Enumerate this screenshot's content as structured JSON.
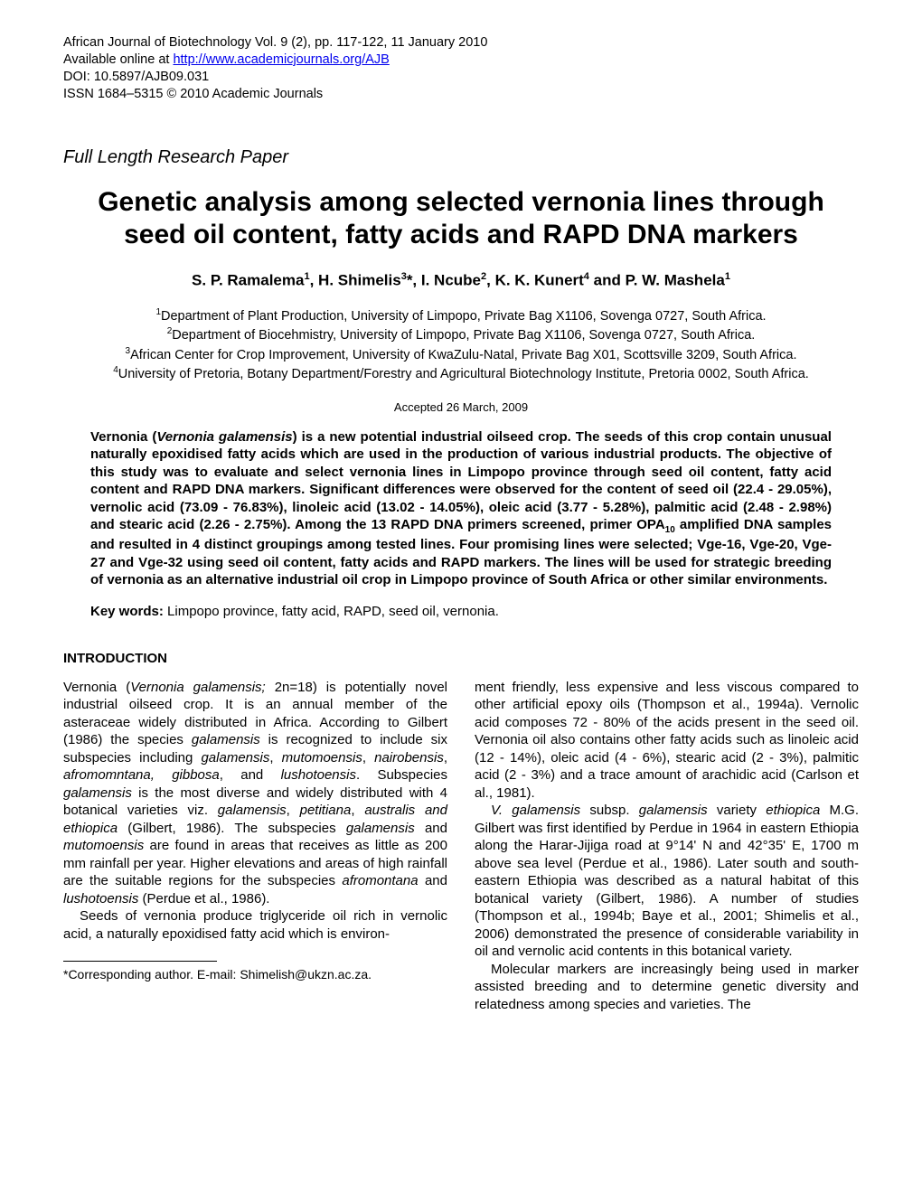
{
  "header": {
    "line1": "African Journal of Biotechnology Vol. 9 (2), pp. 117-122, 11 January 2010",
    "line2_prefix": "Available online at ",
    "line2_link": "http://www.academicjournals.org/AJB",
    "doi": "DOI: 10.5897/AJB09.031",
    "issn": "ISSN 1684–5315 © 2010 Academic Journals"
  },
  "paper_type": "Full Length Research Paper",
  "title": "Genetic analysis among selected vernonia lines through seed oil content, fatty acids and RAPD DNA markers",
  "authors_html": "S. P. Ramalema<sup>1</sup>, H. Shimelis<sup>3</sup>*, I. Ncube<sup>2</sup>, K. K. Kunert<sup>4</sup> and P. W. Mashela<sup>1</sup>",
  "affiliations": {
    "a1": "Department of Plant Production, University of Limpopo, Private Bag X1106, Sovenga 0727, South Africa.",
    "a2": "Department of Biocehmistry, University of Limpopo, Private Bag X1106, Sovenga 0727, South Africa.",
    "a3": "African Center for Crop Improvement, University of KwaZulu-Natal, Private Bag X01, Scottsville 3209, South Africa.",
    "a4": "University of Pretoria, Botany Department/Forestry and Agricultural Biotechnology Institute, Pretoria 0002, South Africa."
  },
  "accepted": "Accepted 26 March, 2009",
  "abstract_html": "Vernonia (<em>Vernonia galamensis</em>) is a new potential industrial oilseed crop. The seeds of this crop contain unusual naturally epoxidised fatty acids which are used in the production of various industrial products. The objective of this study was to evaluate and select vernonia lines in Limpopo province through seed oil content, fatty acid content and RAPD DNA markers. Significant differences were observed for the content of seed oil (22.4 - 29.05%), vernolic acid (73.09 - 76.83%), linoleic acid (13.02 - 14.05%), oleic acid (3.77 - 5.28%), palmitic acid (2.48 - 2.98%) and stearic acid (2.26 - 2.75%). Among the 13 RAPD DNA primers screened, primer OPA<sub>10</sub> amplified DNA samples and resulted in 4 distinct groupings among tested lines. Four promising lines were selected; Vge-16, Vge-20, Vge-27 and Vge-32 using seed oil content, fatty acids and RAPD markers. The lines will be used for strategic breeding of vernonia as an alternative industrial oil crop in Limpopo province of South Africa or other similar environments.",
  "keywords_label": "Key words:",
  "keywords_text": " Limpopo province, fatty acid, RAPD, seed oil, vernonia.",
  "intro_heading": "INTRODUCTION",
  "col1_p1_html": "Vernonia (<em>Vernonia galamensis;</em> 2n=18) is potentially novel industrial oilseed crop. It is an annual member of the asteraceae widely distributed in Africa. According to Gilbert (1986) the species <em>galamensis</em> is recognized to include six subspecies including <em>galamensis</em>, <em>mutomoensis</em>, <em>nairobensis</em>, <em>afromomntana, gibbosa</em>, and <em>lushotoensis</em>. Subspecies <em>galamensis</em> is the most diverse and widely distributed with 4 botanical varieties viz. <em>galamensis</em>, <em>petitiana</em>, <em>australis and ethiopica</em> (Gilbert, 1986). The subspecies <em>galamensis</em> and <em>mutomoensis</em> are found in areas that receives as little as 200 mm rainfall per year. Higher elevations and areas of high rainfall are the suitable regions for the subspecies <em>afromontana</em> and <em>lushotoensis</em> (Perdue et al., 1986).",
  "col1_p2_html": "Seeds of vernonia produce triglyceride oil rich in vernolic acid, a naturally epoxidised fatty acid which is environ-",
  "col2_p1_html": "ment friendly, less expensive and less viscous compared to other artificial epoxy oils (Thompson et al., 1994a). Vernolic acid composes 72 - 80% of the acids present in the seed oil. Vernonia oil also contains other fatty acids such as linoleic acid (12 - 14%), oleic acid (4 - 6%), stearic acid (2 - 3%), palmitic acid (2 - 3%) and a trace amount of arachidic acid (Carlson et al., 1981).",
  "col2_p2_html": "<em>V. galamensis</em> subsp. <em>galamensis</em> variety <em>ethiopica</em> M.G. Gilbert was first identified by Perdue in 1964 in eastern Ethiopia along the Harar-Jijiga road at 9°14' N and 42°35' E, 1700 m above sea level (Perdue et al., 1986). Later south and south-eastern Ethiopia was described as a natural habitat of this botanical variety (Gilbert, 1986). A number of studies (Thompson et al., 1994b; Baye et al., 2001; Shimelis et al., 2006) demonstrated the presence of considerable variability in oil and vernolic acid contents in this botanical variety.",
  "col2_p3_html": "Molecular markers are increasingly being used in marker assisted breeding and to determine genetic diversity and relatedness  among  species  and  varieties.  The",
  "footnote": "*Corresponding author. E-mail: Shimelish@ukzn.ac.za."
}
